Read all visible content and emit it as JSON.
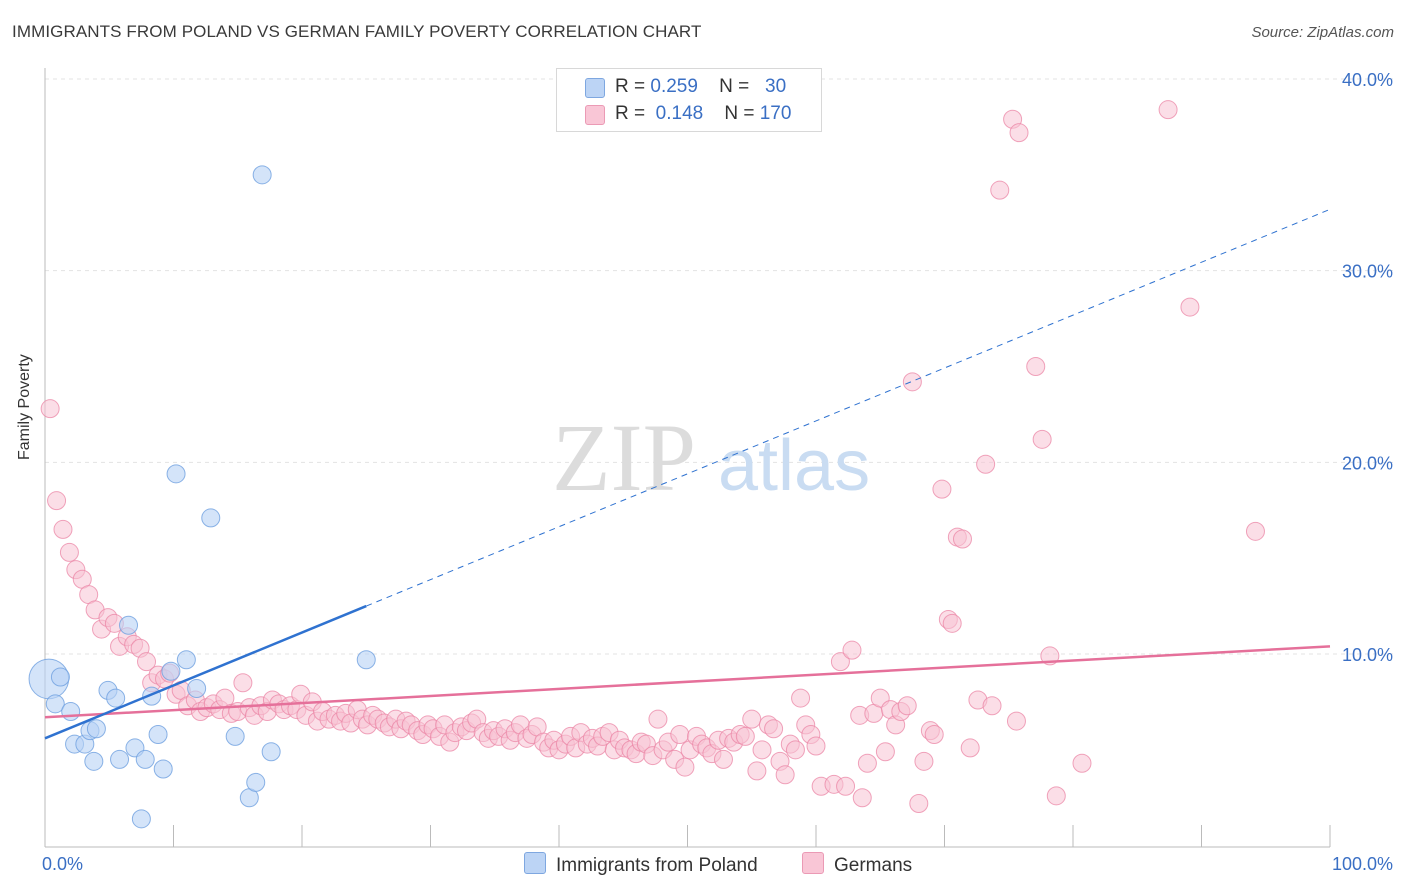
{
  "title": "IMMIGRANTS FROM POLAND VS GERMAN FAMILY POVERTY CORRELATION CHART",
  "source": "Source: ZipAtlas.com",
  "watermark": {
    "zip": "ZIP",
    "atlas": "atlas"
  },
  "legend": {
    "rows": [
      {
        "r_label": "R =",
        "r_value": "0.259",
        "n_label": "N =",
        "n_value": "30",
        "color": "#aeccf5"
      },
      {
        "r_label": "R =",
        "r_value": "0.148",
        "n_label": "N =",
        "n_value": "170",
        "color": "#f7b9cd"
      }
    ]
  },
  "bottom_legend": [
    {
      "label": "Immigrants from Poland",
      "color": "#aeccf5"
    },
    {
      "label": "Germans",
      "color": "#f7b9cd"
    }
  ],
  "chart_data": {
    "type": "scatter",
    "title": "IMMIGRANTS FROM POLAND VS GERMAN FAMILY POVERTY CORRELATION CHART",
    "xlabel": "",
    "ylabel": "Family Poverty",
    "xlim": [
      0,
      100
    ],
    "ylim": [
      0,
      40
    ],
    "x_tick_labels": [
      "0.0%",
      "100.0%"
    ],
    "y_ticks": [
      10,
      20,
      30,
      40
    ],
    "y_tick_labels": [
      "10.0%",
      "20.0%",
      "30.0%",
      "40.0%"
    ],
    "colors": {
      "poland": "#6fa0e0",
      "poland_fill": "#b8d2f5",
      "germans": "#eb86a6",
      "germans_fill": "#f8c3d4",
      "poland_line": "#2f72d0",
      "germans_line": "#e5709a"
    },
    "series": [
      {
        "name": "Immigrants from Poland",
        "trend": {
          "x0": 0,
          "y0": 5.6,
          "x1": 100,
          "y1": 33.2,
          "solid_until": 25
        },
        "points": [
          [
            0.3,
            8.7,
            2.2
          ],
          [
            1.2,
            8.8,
            1
          ],
          [
            0.8,
            7.4,
            1
          ],
          [
            2.0,
            7.0,
            1
          ],
          [
            2.3,
            5.3,
            1
          ],
          [
            3.1,
            5.3,
            1
          ],
          [
            3.5,
            6.0,
            1
          ],
          [
            4.0,
            6.1,
            1
          ],
          [
            3.8,
            4.4,
            1
          ],
          [
            4.9,
            8.1,
            1
          ],
          [
            5.5,
            7.7,
            1
          ],
          [
            5.8,
            4.5,
            1
          ],
          [
            6.5,
            11.5,
            1
          ],
          [
            7.0,
            5.1,
            1
          ],
          [
            7.8,
            4.5,
            1
          ],
          [
            8.3,
            7.8,
            1
          ],
          [
            8.8,
            5.8,
            1
          ],
          [
            9.2,
            4.0,
            1
          ],
          [
            9.8,
            9.1,
            1
          ],
          [
            10.2,
            19.4,
            1
          ],
          [
            11.0,
            9.7,
            1
          ],
          [
            11.8,
            8.2,
            1
          ],
          [
            12.9,
            17.1,
            1
          ],
          [
            14.8,
            5.7,
            1
          ],
          [
            15.9,
            2.5,
            1
          ],
          [
            16.4,
            3.3,
            1
          ],
          [
            16.9,
            35.0,
            1
          ],
          [
            17.6,
            4.9,
            1
          ],
          [
            7.5,
            1.4,
            1
          ],
          [
            25.0,
            9.7,
            1
          ]
        ]
      },
      {
        "name": "Germans",
        "trend": {
          "x0": 0,
          "y0": 6.7,
          "x1": 100,
          "y1": 10.4
        },
        "points": [
          [
            0.4,
            22.8
          ],
          [
            0.9,
            18.0
          ],
          [
            1.4,
            16.5
          ],
          [
            1.9,
            15.3
          ],
          [
            2.4,
            14.4
          ],
          [
            2.9,
            13.9
          ],
          [
            3.4,
            13.1
          ],
          [
            3.9,
            12.3
          ],
          [
            4.4,
            11.3
          ],
          [
            4.9,
            11.9
          ],
          [
            5.4,
            11.6
          ],
          [
            5.8,
            10.4
          ],
          [
            6.4,
            10.9
          ],
          [
            6.9,
            10.5
          ],
          [
            7.4,
            10.3
          ],
          [
            7.9,
            9.6
          ],
          [
            8.3,
            8.5
          ],
          [
            8.8,
            8.9
          ],
          [
            9.3,
            8.7
          ],
          [
            9.7,
            9.0
          ],
          [
            10.2,
            7.9
          ],
          [
            10.6,
            8.1
          ],
          [
            11.1,
            7.3
          ],
          [
            11.7,
            7.6
          ],
          [
            12.1,
            7.0
          ],
          [
            12.6,
            7.2
          ],
          [
            13.1,
            7.4
          ],
          [
            13.6,
            7.1
          ],
          [
            14.0,
            7.7
          ],
          [
            14.5,
            6.9
          ],
          [
            15.0,
            7.0
          ],
          [
            15.4,
            8.5
          ],
          [
            15.9,
            7.2
          ],
          [
            16.3,
            6.8
          ],
          [
            16.8,
            7.3
          ],
          [
            17.3,
            7.0
          ],
          [
            17.7,
            7.6
          ],
          [
            18.2,
            7.4
          ],
          [
            18.6,
            7.1
          ],
          [
            19.1,
            7.3
          ],
          [
            19.6,
            7.1
          ],
          [
            19.9,
            7.9
          ],
          [
            20.3,
            6.8
          ],
          [
            20.8,
            7.5
          ],
          [
            21.2,
            6.5
          ],
          [
            21.6,
            7.0
          ],
          [
            22.1,
            6.6
          ],
          [
            22.6,
            6.8
          ],
          [
            23.0,
            6.5
          ],
          [
            23.4,
            6.9
          ],
          [
            23.8,
            6.4
          ],
          [
            24.3,
            7.1
          ],
          [
            24.7,
            6.6
          ],
          [
            25.1,
            6.3
          ],
          [
            25.5,
            6.8
          ],
          [
            25.9,
            6.6
          ],
          [
            26.4,
            6.4
          ],
          [
            26.8,
            6.2
          ],
          [
            27.3,
            6.6
          ],
          [
            27.7,
            6.1
          ],
          [
            28.1,
            6.5
          ],
          [
            28.5,
            6.3
          ],
          [
            29.0,
            6.0
          ],
          [
            29.4,
            5.8
          ],
          [
            29.8,
            6.3
          ],
          [
            30.2,
            6.1
          ],
          [
            30.7,
            5.7
          ],
          [
            31.1,
            6.3
          ],
          [
            31.5,
            5.4
          ],
          [
            31.9,
            5.9
          ],
          [
            32.4,
            6.2
          ],
          [
            32.8,
            6.0
          ],
          [
            33.2,
            6.4
          ],
          [
            33.6,
            6.6
          ],
          [
            34.1,
            5.9
          ],
          [
            34.5,
            5.6
          ],
          [
            34.9,
            6.0
          ],
          [
            35.3,
            5.7
          ],
          [
            35.8,
            6.1
          ],
          [
            36.2,
            5.5
          ],
          [
            36.6,
            5.9
          ],
          [
            37.0,
            6.3
          ],
          [
            37.5,
            5.6
          ],
          [
            37.9,
            5.8
          ],
          [
            38.3,
            6.2
          ],
          [
            38.8,
            5.4
          ],
          [
            39.2,
            5.1
          ],
          [
            39.6,
            5.5
          ],
          [
            40.0,
            5.0
          ],
          [
            40.5,
            5.3
          ],
          [
            40.9,
            5.7
          ],
          [
            41.3,
            5.1
          ],
          [
            41.7,
            5.9
          ],
          [
            42.2,
            5.3
          ],
          [
            42.6,
            5.6
          ],
          [
            43.0,
            5.2
          ],
          [
            43.4,
            5.7
          ],
          [
            43.9,
            5.9
          ],
          [
            44.3,
            5.0
          ],
          [
            44.7,
            5.5
          ],
          [
            45.1,
            5.1
          ],
          [
            45.6,
            5.0
          ],
          [
            46.0,
            4.8
          ],
          [
            46.4,
            5.4
          ],
          [
            46.8,
            5.3
          ],
          [
            47.3,
            4.7
          ],
          [
            47.7,
            6.6
          ],
          [
            48.1,
            5.0
          ],
          [
            48.5,
            5.4
          ],
          [
            49.0,
            4.5
          ],
          [
            49.4,
            5.8
          ],
          [
            49.8,
            4.1
          ],
          [
            50.2,
            5.0
          ],
          [
            50.7,
            5.7
          ],
          [
            51.1,
            5.3
          ],
          [
            51.5,
            5.1
          ],
          [
            51.9,
            4.8
          ],
          [
            52.4,
            5.5
          ],
          [
            52.8,
            4.5
          ],
          [
            53.2,
            5.6
          ],
          [
            53.6,
            5.4
          ],
          [
            54.1,
            5.8
          ],
          [
            54.5,
            5.7
          ],
          [
            55.0,
            6.6
          ],
          [
            55.4,
            3.9
          ],
          [
            55.8,
            5.0
          ],
          [
            56.3,
            6.3
          ],
          [
            56.7,
            6.1
          ],
          [
            57.2,
            4.4
          ],
          [
            57.6,
            3.7
          ],
          [
            58.0,
            5.3
          ],
          [
            58.4,
            5.0
          ],
          [
            58.8,
            7.7
          ],
          [
            59.2,
            6.3
          ],
          [
            59.6,
            5.8
          ],
          [
            60.0,
            5.2
          ],
          [
            60.4,
            3.1
          ],
          [
            61.4,
            3.2
          ],
          [
            61.9,
            9.6
          ],
          [
            62.3,
            3.1
          ],
          [
            62.8,
            10.2
          ],
          [
            63.4,
            6.8
          ],
          [
            63.6,
            2.5
          ],
          [
            64.0,
            4.3
          ],
          [
            64.5,
            6.9
          ],
          [
            65.0,
            7.7
          ],
          [
            65.4,
            4.9
          ],
          [
            65.8,
            7.1
          ],
          [
            66.2,
            6.3
          ],
          [
            66.6,
            7.0
          ],
          [
            67.1,
            7.3
          ],
          [
            67.5,
            24.2
          ],
          [
            68.0,
            2.2
          ],
          [
            68.4,
            4.4
          ],
          [
            68.9,
            6.0
          ],
          [
            69.2,
            5.8
          ],
          [
            69.8,
            18.6
          ],
          [
            70.3,
            11.8
          ],
          [
            70.6,
            11.6
          ],
          [
            71.0,
            16.1
          ],
          [
            71.4,
            16.0
          ],
          [
            72.0,
            5.1
          ],
          [
            72.6,
            7.6
          ],
          [
            73.2,
            19.9
          ],
          [
            73.7,
            7.3
          ],
          [
            74.3,
            34.2
          ],
          [
            75.3,
            37.9
          ],
          [
            75.8,
            37.2
          ],
          [
            75.6,
            6.5
          ],
          [
            77.1,
            25.0
          ],
          [
            77.6,
            21.2
          ],
          [
            78.2,
            9.9
          ],
          [
            78.7,
            2.6
          ],
          [
            80.7,
            4.3
          ],
          [
            87.4,
            38.4
          ],
          [
            89.1,
            28.1
          ],
          [
            94.2,
            16.4
          ]
        ]
      }
    ]
  }
}
